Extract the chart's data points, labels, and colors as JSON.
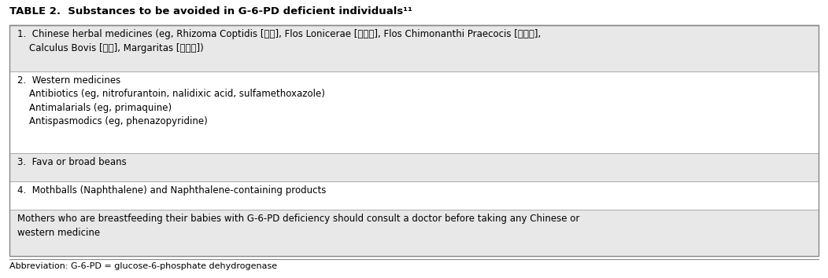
{
  "title": "TABLE 2.  Substances to be avoided in G-6-PD deficient individuals¹¹",
  "title_fontsize": 9.5,
  "rows": [
    {
      "text": "1.  Chinese herbal medicines (eg, Rhizoma Coptidis [黃連], Flos Lonicerae [金銀花], Flos Chimonanthi Praecocis [臘梅花],\n    Calculus Bovis [牛黃], Margaritas [珍珠末])",
      "bg": "#e8e8e8",
      "fontsize": 8.5,
      "lines": 2
    },
    {
      "text": "2.  Western medicines\n    Antibiotics (eg, nitrofurantoin, nalidixic acid, sulfamethoxazole)\n    Antimalarials (eg, primaquine)\n    Antispasmodics (eg, phenazopyridine)",
      "bg": "#ffffff",
      "fontsize": 8.5,
      "lines": 4
    },
    {
      "text": "3.  Fava or broad beans",
      "bg": "#e8e8e8",
      "fontsize": 8.5,
      "lines": 1
    },
    {
      "text": "4.  Mothballs (Naphthalene) and Naphthalene-containing products",
      "bg": "#ffffff",
      "fontsize": 8.5,
      "lines": 1
    },
    {
      "text": "Mothers who are breastfeeding their babies with G-6-PD deficiency should consult a doctor before taking any Chinese or\nwestern medicine",
      "bg": "#e8e8e8",
      "fontsize": 8.5,
      "lines": 2
    }
  ],
  "abbreviation": "Abbreviation: G-6-PD = glucose-6-phosphate dehydrogenase",
  "abbr_fontsize": 8.0,
  "fig_bg": "#ffffff",
  "border_color": "#888888",
  "line_color": "#aaaaaa",
  "text_color": "#000000",
  "fig_width": 10.52,
  "fig_height": 3.54,
  "dpi": 100
}
